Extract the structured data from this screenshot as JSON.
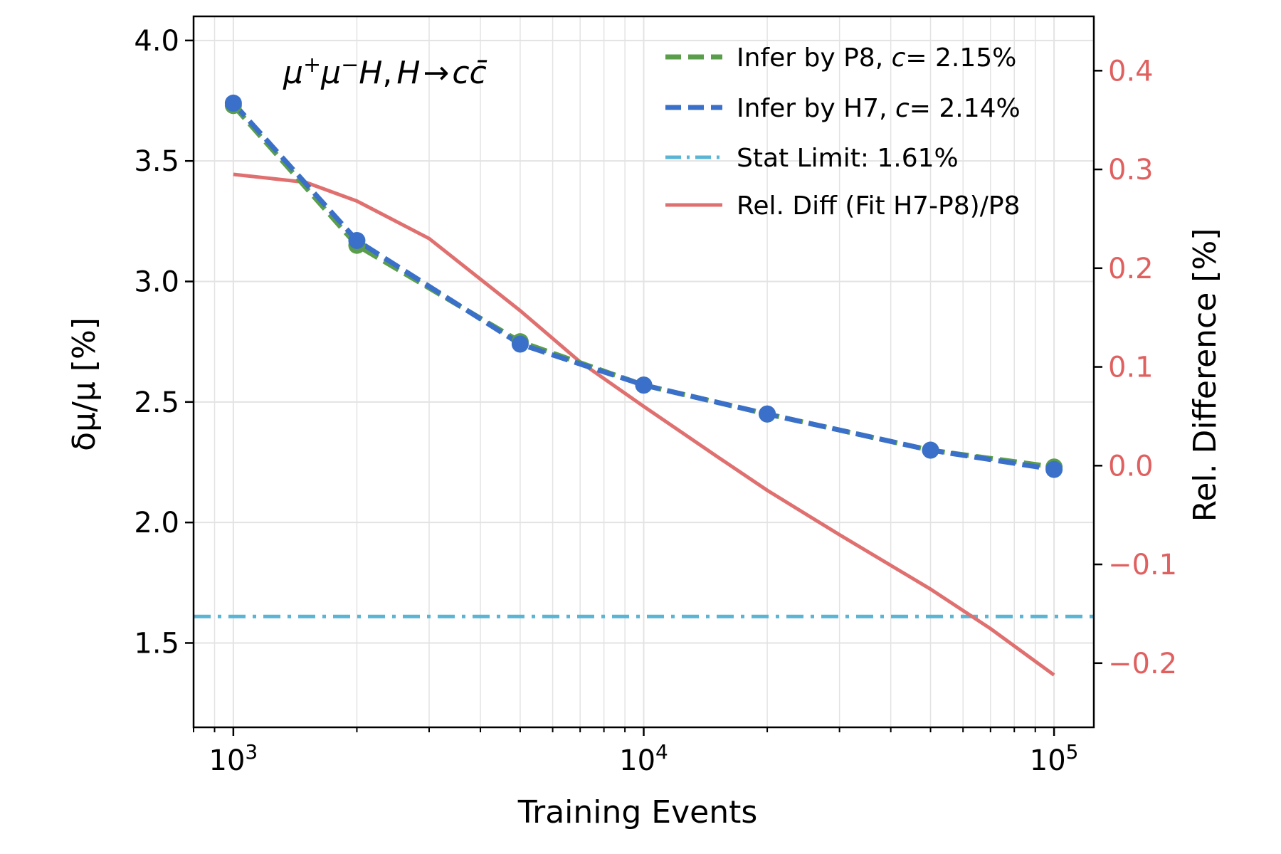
{
  "chart_data": {
    "type": "line",
    "x_scale": "log",
    "xlabel": "Training Events",
    "ylabel": "δμ/μ [%]",
    "ylabel_right": "Rel. Difference [%]",
    "xlim": [
      800,
      125000
    ],
    "ylim": [
      1.15,
      4.1
    ],
    "ylim_right": [
      -0.265,
      0.455
    ],
    "x_ticks": [
      {
        "value": 1000,
        "base": "10",
        "exp": "3"
      },
      {
        "value": 10000,
        "base": "10",
        "exp": "4"
      },
      {
        "value": 100000,
        "base": "10",
        "exp": "5"
      }
    ],
    "y_ticks": [
      {
        "value": 1.5,
        "label": "1.5"
      },
      {
        "value": 2.0,
        "label": "2.0"
      },
      {
        "value": 2.5,
        "label": "2.5"
      },
      {
        "value": 3.0,
        "label": "3.0"
      },
      {
        "value": 3.5,
        "label": "3.5"
      },
      {
        "value": 4.0,
        "label": "4.0"
      }
    ],
    "y_ticks_right": [
      {
        "value": -0.2,
        "label": "−0.2"
      },
      {
        "value": -0.1,
        "label": "−0.1"
      },
      {
        "value": 0.0,
        "label": "0.0"
      },
      {
        "value": 0.1,
        "label": "0.1"
      },
      {
        "value": 0.2,
        "label": "0.2"
      },
      {
        "value": 0.3,
        "label": "0.3"
      },
      {
        "value": 0.4,
        "label": "0.4"
      }
    ],
    "annotation": {
      "mu": "μ",
      "plus": "+",
      "minus": "−",
      "H": "H",
      "comma": ",",
      "arrow": "→",
      "c": "c",
      "cbar": "c̄"
    },
    "series": [
      {
        "name": "Infer by P8",
        "c_label": "c",
        "c_value": "= 2.15%",
        "color": "#5a9e4b",
        "style": "dashed",
        "c": 2.15,
        "x": [
          1000,
          2000,
          5000,
          10000,
          20000,
          50000,
          100000
        ],
        "y": [
          3.73,
          3.15,
          2.75,
          2.57,
          2.45,
          2.3,
          2.23
        ]
      },
      {
        "name": "Infer by H7",
        "c_label": "c",
        "c_value": "= 2.14%",
        "color": "#3a70c9",
        "style": "dashed",
        "c": 2.14,
        "x": [
          1000,
          2000,
          5000,
          10000,
          20000,
          50000,
          100000
        ],
        "y": [
          3.74,
          3.17,
          2.74,
          2.57,
          2.45,
          2.3,
          2.22
        ]
      },
      {
        "name": "Stat Limit: 1.61%",
        "color": "#5ab4d4",
        "style": "dashdot",
        "y_const": 1.61
      },
      {
        "name": "Rel. Diff (Fit H7-P8)/P8",
        "color": "#e07070",
        "style": "solid",
        "axis": "right",
        "x": [
          1000,
          1500,
          2000,
          3000,
          5000,
          7000,
          10000,
          15000,
          20000,
          30000,
          50000,
          70000,
          100000
        ],
        "y": [
          0.295,
          0.287,
          0.268,
          0.23,
          0.157,
          0.105,
          0.06,
          0.01,
          -0.025,
          -0.07,
          -0.125,
          -0.165,
          -0.212
        ]
      }
    ],
    "colors": {
      "right_axis": "#e06060",
      "grid": "#e3e3e3"
    }
  }
}
